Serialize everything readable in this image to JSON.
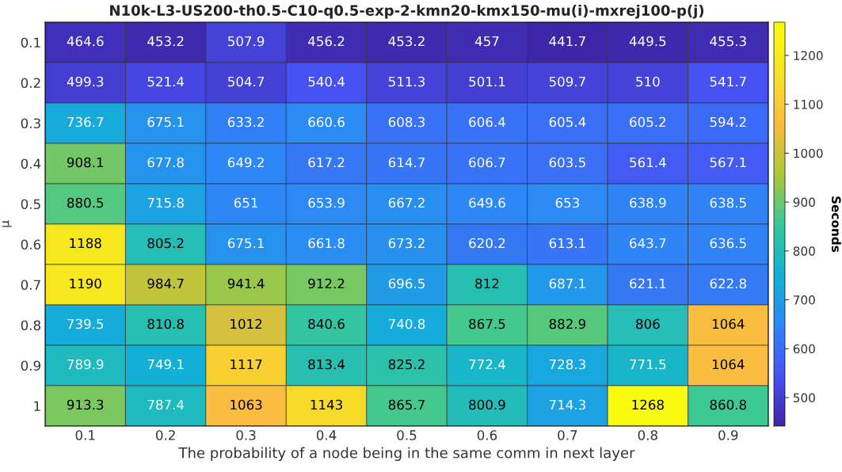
{
  "chart_data": {
    "type": "heatmap",
    "title": "N10k-L3-US200-th0.5-C10-q0.5-exp-2-kmn20-kmx150-mu(i)-mxrej100-p(j)",
    "xlabel": "The probability of a node being in the same comm in next layer",
    "ylabel": "μ",
    "clabel": "Seconds",
    "categories": [
      "0.1",
      "0.2",
      "0.3",
      "0.4",
      "0.5",
      "0.6",
      "0.7",
      "0.8",
      "0.9"
    ],
    "y_categories": [
      "0.1",
      "0.2",
      "0.3",
      "0.4",
      "0.5",
      "0.6",
      "0.7",
      "0.8",
      "0.9",
      "1"
    ],
    "cells": [
      [
        464.6,
        453.2,
        507.9,
        456.2,
        453.2,
        457,
        441.7,
        449.5,
        455.3
      ],
      [
        499.3,
        521.4,
        504.7,
        540.4,
        511.3,
        501.1,
        509.7,
        510,
        541.7
      ],
      [
        736.7,
        675.1,
        633.2,
        660.6,
        608.3,
        606.4,
        605.4,
        605.2,
        594.2
      ],
      [
        908.1,
        677.8,
        649.2,
        617.2,
        614.7,
        606.7,
        603.5,
        561.4,
        567.1
      ],
      [
        880.5,
        715.8,
        651,
        653.9,
        667.2,
        649.6,
        653,
        638.9,
        638.5
      ],
      [
        1188,
        805.2,
        675.1,
        661.8,
        673.2,
        620.2,
        613.1,
        643.7,
        636.5
      ],
      [
        1190,
        984.7,
        941.4,
        912.2,
        696.5,
        812,
        687.1,
        621.1,
        622.8
      ],
      [
        739.5,
        810.8,
        1012,
        840.6,
        740.8,
        867.5,
        882.9,
        806,
        1064
      ],
      [
        789.9,
        749.1,
        1117,
        813.4,
        825.2,
        772.4,
        728.3,
        771.5,
        1064
      ],
      [
        913.3,
        787.4,
        1063,
        1143,
        865.7,
        800.9,
        714.3,
        1268,
        860.8
      ]
    ],
    "clim": [
      441.7,
      1268
    ],
    "cticks": [
      500,
      600,
      700,
      800,
      900,
      1000,
      1100,
      1200
    ],
    "data_labels": true
  }
}
